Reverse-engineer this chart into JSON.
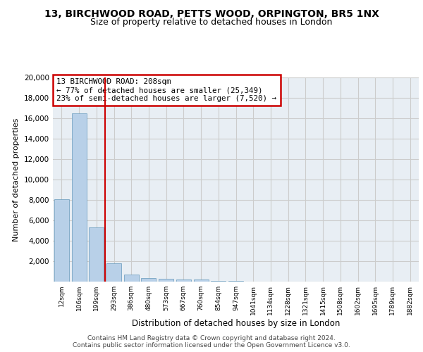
{
  "title": "13, BIRCHWOOD ROAD, PETTS WOOD, ORPINGTON, BR5 1NX",
  "subtitle": "Size of property relative to detached houses in London",
  "xlabel": "Distribution of detached houses by size in London",
  "ylabel": "Number of detached properties",
  "bar_labels": [
    "12sqm",
    "106sqm",
    "199sqm",
    "293sqm",
    "386sqm",
    "480sqm",
    "573sqm",
    "667sqm",
    "760sqm",
    "854sqm",
    "947sqm",
    "1041sqm",
    "1134sqm",
    "1228sqm",
    "1321sqm",
    "1415sqm",
    "1508sqm",
    "1602sqm",
    "1695sqm",
    "1789sqm",
    "1882sqm"
  ],
  "bar_values": [
    8100,
    16500,
    5300,
    1800,
    700,
    350,
    270,
    200,
    200,
    100,
    50,
    30,
    20,
    15,
    10,
    8,
    5,
    4,
    3,
    2,
    1
  ],
  "bar_color": "#b8d0e8",
  "bar_edge_color": "#6699bb",
  "vline_color": "#cc0000",
  "annotation_text": "13 BIRCHWOOD ROAD: 208sqm\n← 77% of detached houses are smaller (25,349)\n23% of semi-detached houses are larger (7,520) →",
  "annotation_box_color": "#cc0000",
  "ylim": [
    0,
    20000
  ],
  "yticks": [
    0,
    2000,
    4000,
    6000,
    8000,
    10000,
    12000,
    14000,
    16000,
    18000,
    20000
  ],
  "grid_color": "#cccccc",
  "background_color": "#e8eef4",
  "footer_text": "Contains HM Land Registry data © Crown copyright and database right 2024.\nContains public sector information licensed under the Open Government Licence v3.0.",
  "title_fontsize": 10,
  "subtitle_fontsize": 9
}
